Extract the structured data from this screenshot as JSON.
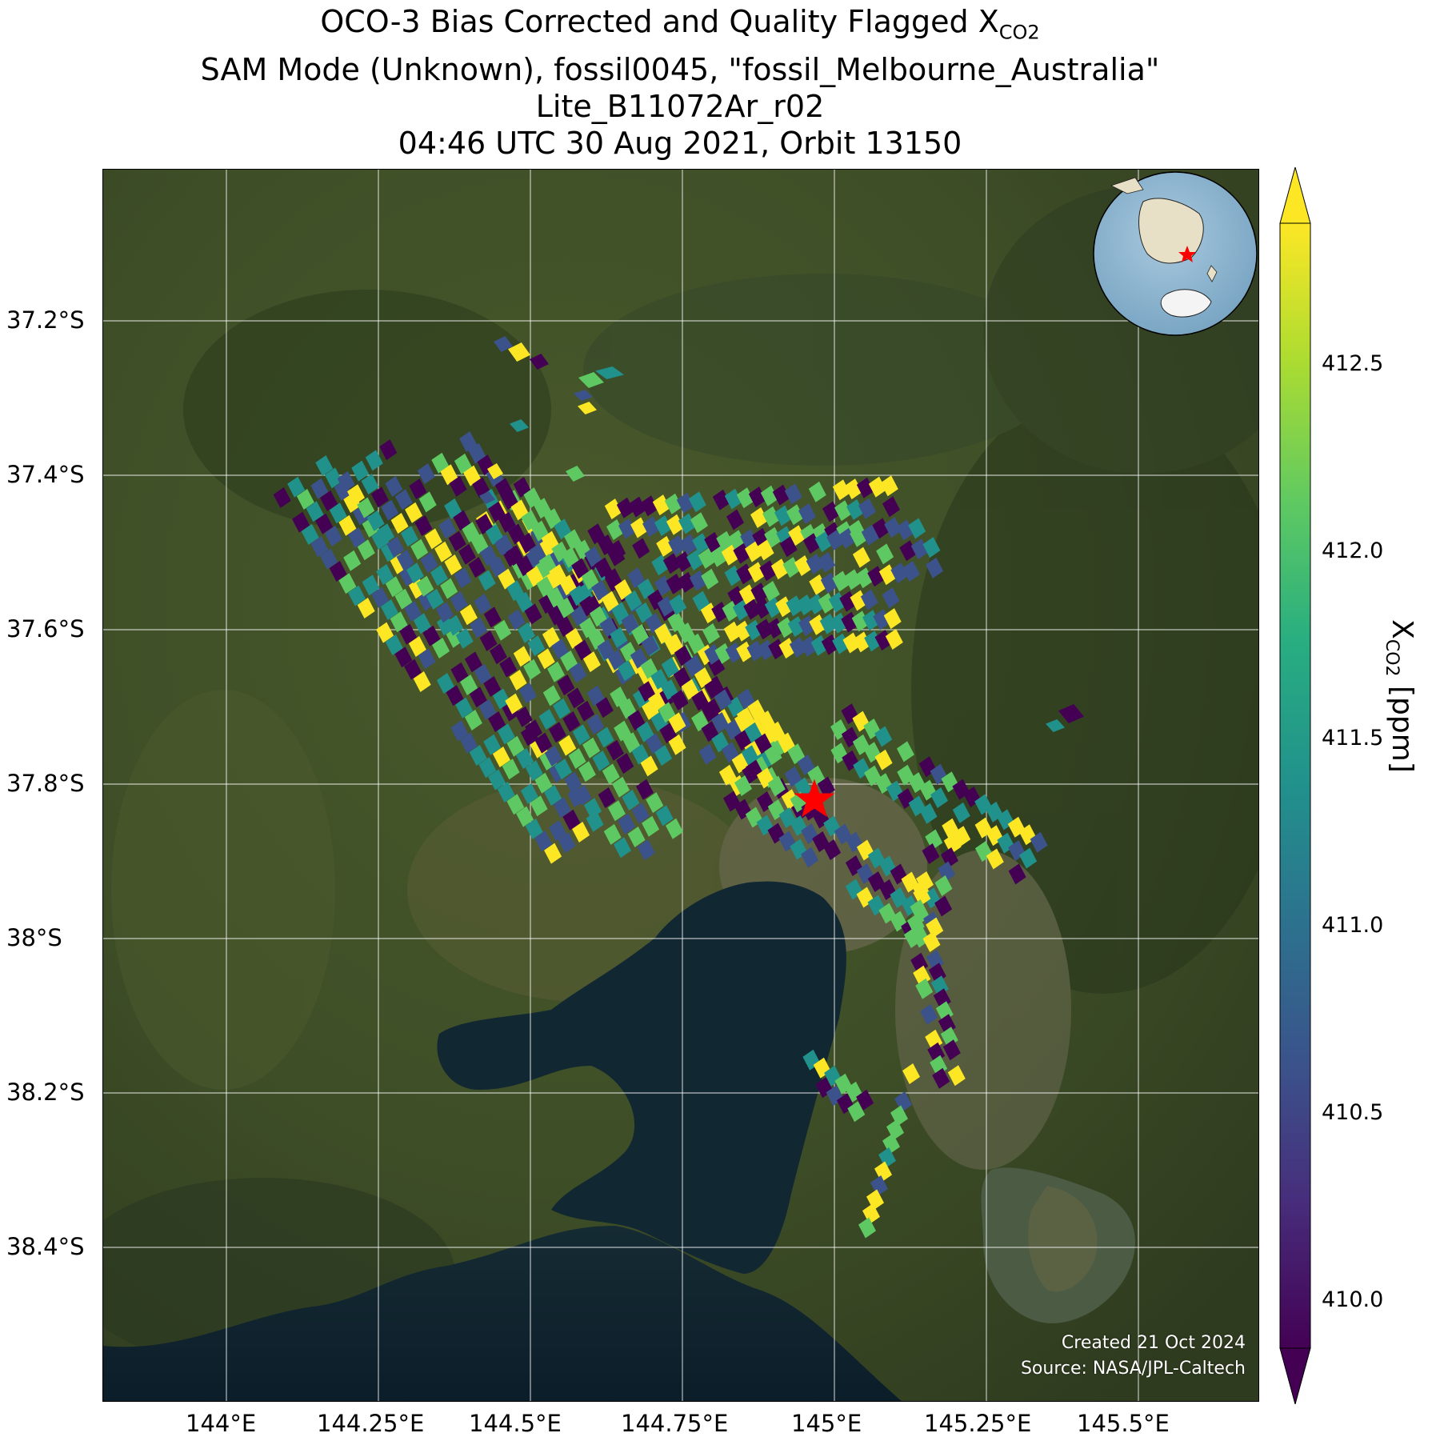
{
  "title": {
    "line1_prefix": "OCO-3 Bias Corrected and Quality Flagged X",
    "line1_sub": "CO2",
    "line2": "SAM Mode (Unknown), fossil0045, \"fossil_Melbourne_Australia\"",
    "line3": "Lite_B11072Ar_r02",
    "line4": "04:46 UTC 30 Aug 2021, Orbit 13150"
  },
  "map": {
    "x_ticks": [
      "144°E",
      "144.25°E",
      "144.5°E",
      "144.75°E",
      "145°E",
      "145.25°E",
      "145.5°E"
    ],
    "y_ticks": [
      "37.2°S",
      "37.4°S",
      "37.6°S",
      "37.8°S",
      "38°S",
      "38.2°S",
      "38.4°S"
    ],
    "target_marker": "star",
    "target_color": "#ff0000",
    "credit_line1": "Created 21 Oct 2024",
    "credit_line2": "Source: NASA/JPL-Caltech",
    "inset": "globe-locator"
  },
  "colorbar": {
    "label_prefix": "X",
    "label_sub": "CO2",
    "label_suffix": " [ppm]",
    "ticks": [
      "410.0",
      "410.5",
      "411.0",
      "411.5",
      "412.0",
      "412.5"
    ],
    "min": 409.8,
    "max": 412.8,
    "colormap": "viridis",
    "colors": [
      "#440154",
      "#3b528b",
      "#21918c",
      "#5ec962",
      "#fde725"
    ]
  },
  "chart_data": {
    "type": "heatmap",
    "description_source": "OCO-3 XCO2 soundings over Melbourne",
    "value_range": [
      409.8,
      412.8
    ],
    "units": "ppm"
  }
}
